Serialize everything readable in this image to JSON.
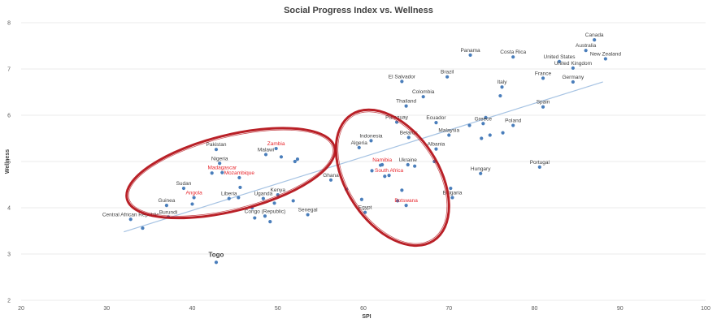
{
  "chart_data": {
    "type": "scatter",
    "title": "Social Progress Index vs. Wellness",
    "xlabel": "SPI",
    "ylabel": "Wellness",
    "xlim": [
      20,
      100
    ],
    "ylim": [
      2,
      8
    ],
    "xticks": [
      20,
      30,
      40,
      50,
      60,
      70,
      80,
      90,
      100
    ],
    "yticks": [
      2,
      3,
      4,
      5,
      6,
      7,
      8
    ],
    "grid": "horizontal",
    "legend": "none",
    "colors": {
      "point": "#4a7ebb",
      "trendline": "#a6c3e3",
      "highlight_label": "#e8262c",
      "ellipse": "#b5141b",
      "gridline": "#e4e4e4"
    },
    "trendline": {
      "x": [
        32,
        88
      ],
      "y": [
        3.48,
        6.72
      ]
    },
    "labeled_points": [
      {
        "label": "Canada",
        "x": 87.0,
        "y": 7.63,
        "highlight": false
      },
      {
        "label": "Australia",
        "x": 86.0,
        "y": 7.4,
        "highlight": false
      },
      {
        "label": "New Zealand",
        "x": 88.3,
        "y": 7.22,
        "highlight": false
      },
      {
        "label": "United States",
        "x": 82.9,
        "y": 7.16,
        "highlight": false
      },
      {
        "label": "United Kingdom",
        "x": 84.5,
        "y": 7.02,
        "highlight": false
      },
      {
        "label": "Germany",
        "x": 84.5,
        "y": 6.72,
        "highlight": false
      },
      {
        "label": "Panama",
        "x": 72.5,
        "y": 7.3,
        "highlight": false
      },
      {
        "label": "Costa Rica",
        "x": 77.5,
        "y": 7.26,
        "highlight": false
      },
      {
        "label": "France",
        "x": 81.0,
        "y": 6.8,
        "highlight": false
      },
      {
        "label": "Brazil",
        "x": 69.8,
        "y": 6.83,
        "highlight": false
      },
      {
        "label": "El Salvador",
        "x": 64.5,
        "y": 6.73,
        "highlight": false
      },
      {
        "label": "Italy",
        "x": 76.2,
        "y": 6.61,
        "highlight": false
      },
      {
        "label": "Colombia",
        "x": 67.0,
        "y": 6.4,
        "highlight": false
      },
      {
        "label": "Spain",
        "x": 81.0,
        "y": 6.18,
        "highlight": false
      },
      {
        "label": "Thailand",
        "x": 65.0,
        "y": 6.2,
        "highlight": false
      },
      {
        "label": "Paraguay",
        "x": 63.9,
        "y": 5.85,
        "highlight": false
      },
      {
        "label": "Ecuador",
        "x": 68.5,
        "y": 5.84,
        "highlight": false
      },
      {
        "label": "Greece",
        "x": 74.0,
        "y": 5.82,
        "highlight": false
      },
      {
        "label": "Poland",
        "x": 77.5,
        "y": 5.78,
        "highlight": false
      },
      {
        "label": "Belarus",
        "x": 65.3,
        "y": 5.52,
        "highlight": false
      },
      {
        "label": "Malaysia",
        "x": 70.0,
        "y": 5.57,
        "highlight": false
      },
      {
        "label": "Indonesia",
        "x": 60.9,
        "y": 5.45,
        "highlight": false
      },
      {
        "label": "Algeria",
        "x": 59.5,
        "y": 5.3,
        "highlight": false
      },
      {
        "label": "Albania",
        "x": 68.5,
        "y": 5.27,
        "highlight": false
      },
      {
        "label": "Ukraine",
        "x": 65.2,
        "y": 4.93,
        "highlight": false
      },
      {
        "label": "Namibia",
        "x": 62.2,
        "y": 4.93,
        "highlight": true
      },
      {
        "label": "South Africa",
        "x": 63.0,
        "y": 4.7,
        "highlight": true
      },
      {
        "label": "Portugal",
        "x": 80.6,
        "y": 4.88,
        "highlight": false
      },
      {
        "label": "Hungary",
        "x": 73.7,
        "y": 4.74,
        "highlight": false
      },
      {
        "label": "Bulgaria",
        "x": 70.4,
        "y": 4.22,
        "highlight": false
      },
      {
        "label": "Ghana",
        "x": 56.2,
        "y": 4.6,
        "highlight": false
      },
      {
        "label": "Egypt",
        "x": 60.2,
        "y": 3.9,
        "highlight": false
      },
      {
        "label": "Botswana",
        "x": 65.0,
        "y": 4.05,
        "highlight": true
      },
      {
        "label": "Pakistan",
        "x": 42.8,
        "y": 5.26,
        "highlight": false
      },
      {
        "label": "Zambia",
        "x": 49.8,
        "y": 5.28,
        "highlight": true
      },
      {
        "label": "Malawi",
        "x": 48.6,
        "y": 5.15,
        "highlight": false
      },
      {
        "label": "Nigeria",
        "x": 43.2,
        "y": 4.96,
        "highlight": false
      },
      {
        "label": "Madagascar",
        "x": 43.5,
        "y": 4.76,
        "highlight": true
      },
      {
        "label": "Mozambique",
        "x": 45.5,
        "y": 4.65,
        "highlight": true
      },
      {
        "label": "Sudan",
        "x": 39.0,
        "y": 4.42,
        "highlight": false
      },
      {
        "label": "Angola",
        "x": 40.2,
        "y": 4.22,
        "highlight": true
      },
      {
        "label": "Liberia",
        "x": 44.3,
        "y": 4.2,
        "highlight": false
      },
      {
        "label": "Uganda",
        "x": 48.3,
        "y": 4.2,
        "highlight": false
      },
      {
        "label": "Kenya",
        "x": 50.0,
        "y": 4.28,
        "highlight": false
      },
      {
        "label": "Guinea",
        "x": 37.0,
        "y": 4.05,
        "highlight": false
      },
      {
        "label": "Burundi",
        "x": 37.2,
        "y": 3.8,
        "highlight": false
      },
      {
        "label": "Congo (Republic)",
        "x": 48.5,
        "y": 3.82,
        "highlight": false
      },
      {
        "label": "Senegal",
        "x": 53.5,
        "y": 3.85,
        "highlight": false
      },
      {
        "label": "Central African Republic",
        "x": 32.8,
        "y": 3.75,
        "highlight": false
      },
      {
        "label": "Togo",
        "x": 42.8,
        "y": 2.82,
        "highlight": false
      }
    ],
    "unlabeled_points": [
      {
        "x": 34.2,
        "y": 3.56
      },
      {
        "x": 40.0,
        "y": 4.08
      },
      {
        "x": 45.4,
        "y": 4.22
      },
      {
        "x": 45.6,
        "y": 4.44
      },
      {
        "x": 47.0,
        "y": 4.0
      },
      {
        "x": 47.3,
        "y": 3.78
      },
      {
        "x": 49.1,
        "y": 3.7
      },
      {
        "x": 49.6,
        "y": 4.1
      },
      {
        "x": 52.0,
        "y": 5.0
      },
      {
        "x": 52.3,
        "y": 5.05
      },
      {
        "x": 51.8,
        "y": 4.15
      },
      {
        "x": 42.3,
        "y": 4.75
      },
      {
        "x": 50.4,
        "y": 5.1
      },
      {
        "x": 58.0,
        "y": 4.4
      },
      {
        "x": 59.8,
        "y": 4.18
      },
      {
        "x": 61.0,
        "y": 4.8
      },
      {
        "x": 62.5,
        "y": 4.68
      },
      {
        "x": 62.0,
        "y": 4.92
      },
      {
        "x": 64.5,
        "y": 4.38
      },
      {
        "x": 64.0,
        "y": 4.15
      },
      {
        "x": 66.0,
        "y": 4.9
      },
      {
        "x": 68.3,
        "y": 5.0
      },
      {
        "x": 70.2,
        "y": 4.42
      },
      {
        "x": 72.4,
        "y": 5.78
      },
      {
        "x": 73.8,
        "y": 5.5
      },
      {
        "x": 76.0,
        "y": 6.42
      },
      {
        "x": 74.3,
        "y": 5.95
      },
      {
        "x": 74.8,
        "y": 5.57
      },
      {
        "x": 76.3,
        "y": 5.62
      }
    ],
    "annotations": [
      {
        "type": "ellipse",
        "cx": 44.5,
        "cy": 4.75,
        "rx": 12.5,
        "ry": 0.82,
        "rotation_deg": -14
      },
      {
        "type": "ellipse",
        "cx": 63.4,
        "cy": 4.65,
        "rx": 8.8,
        "ry": 1.0,
        "rotation_deg": 57
      }
    ]
  }
}
